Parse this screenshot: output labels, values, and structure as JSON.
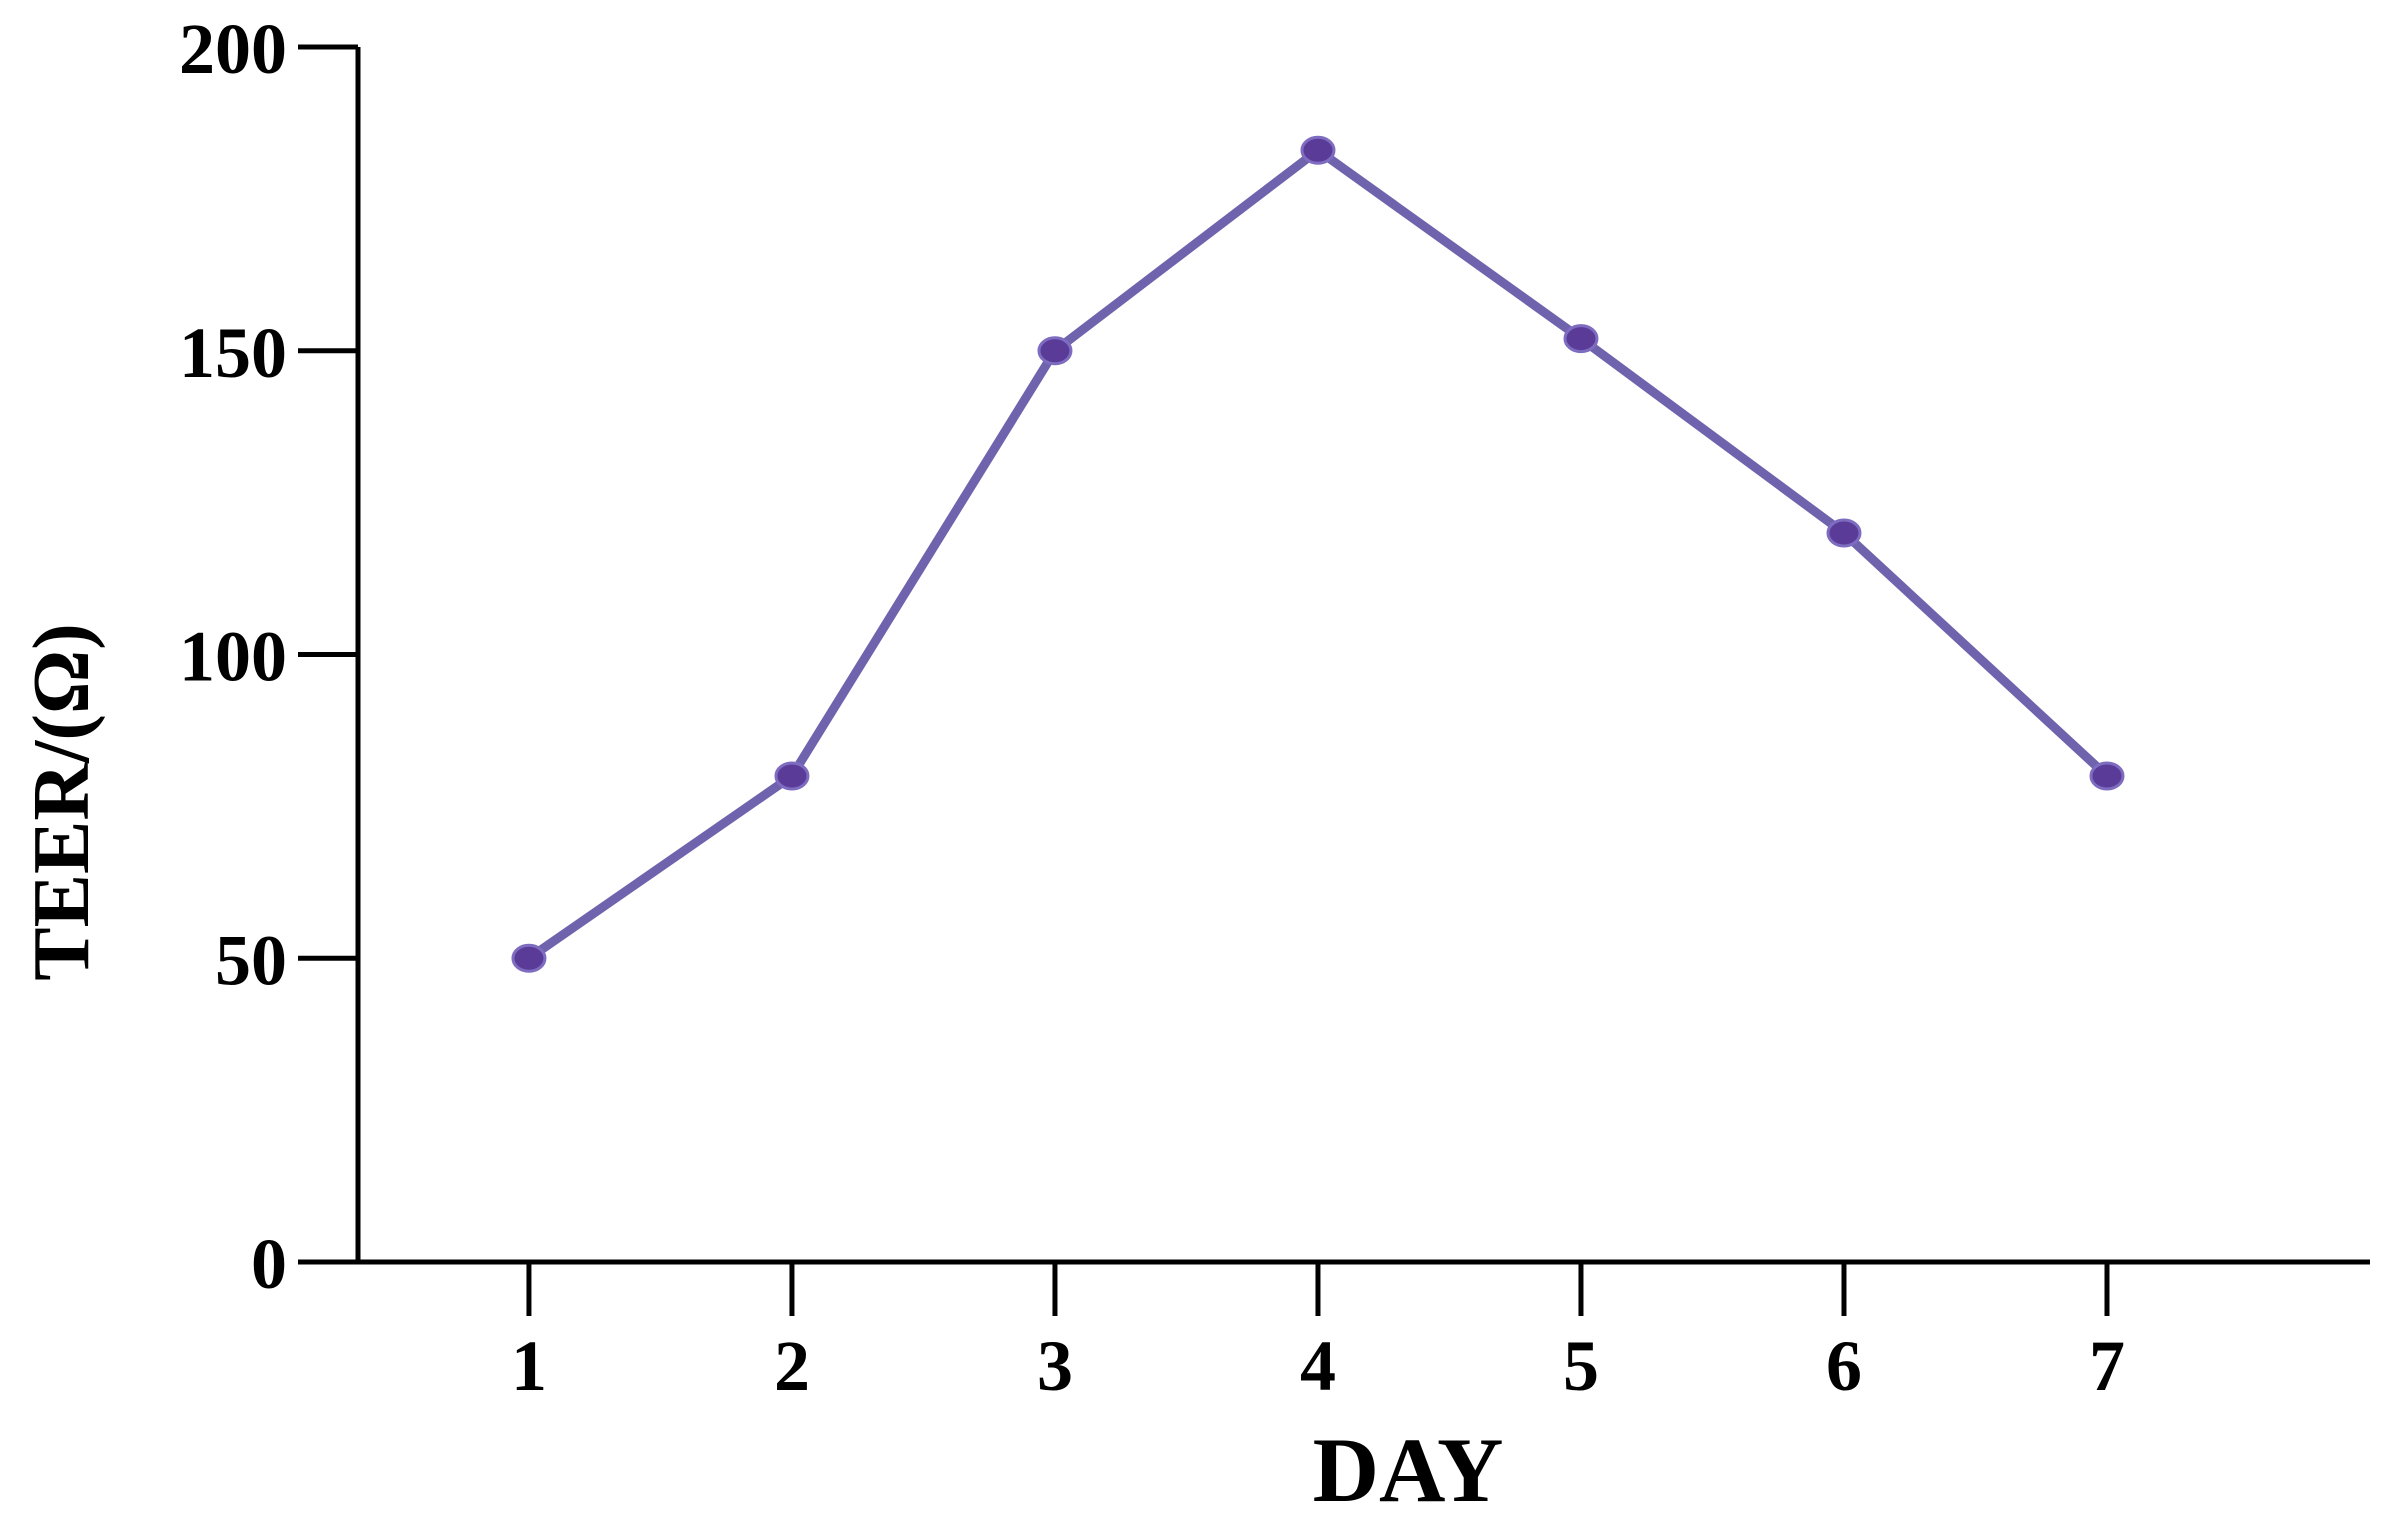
{
  "chart_data": {
    "type": "line",
    "title": "",
    "xlabel": "DAY",
    "ylabel": "TEER/(Ω)",
    "x": [
      1,
      2,
      3,
      4,
      5,
      6,
      7
    ],
    "series": [
      {
        "values": [
          50,
          80,
          150,
          183,
          152,
          120,
          80
        ],
        "color": "#6f63ad",
        "marker_color": "#5a3c98"
      }
    ],
    "xlim": [
      0.35,
      8.0
    ],
    "ylim": [
      0,
      200
    ],
    "yticks": [
      0,
      50,
      100,
      150,
      200
    ],
    "xticks": [
      1,
      2,
      3,
      4,
      5,
      6,
      7
    ],
    "grid": false,
    "legend": "none"
  }
}
